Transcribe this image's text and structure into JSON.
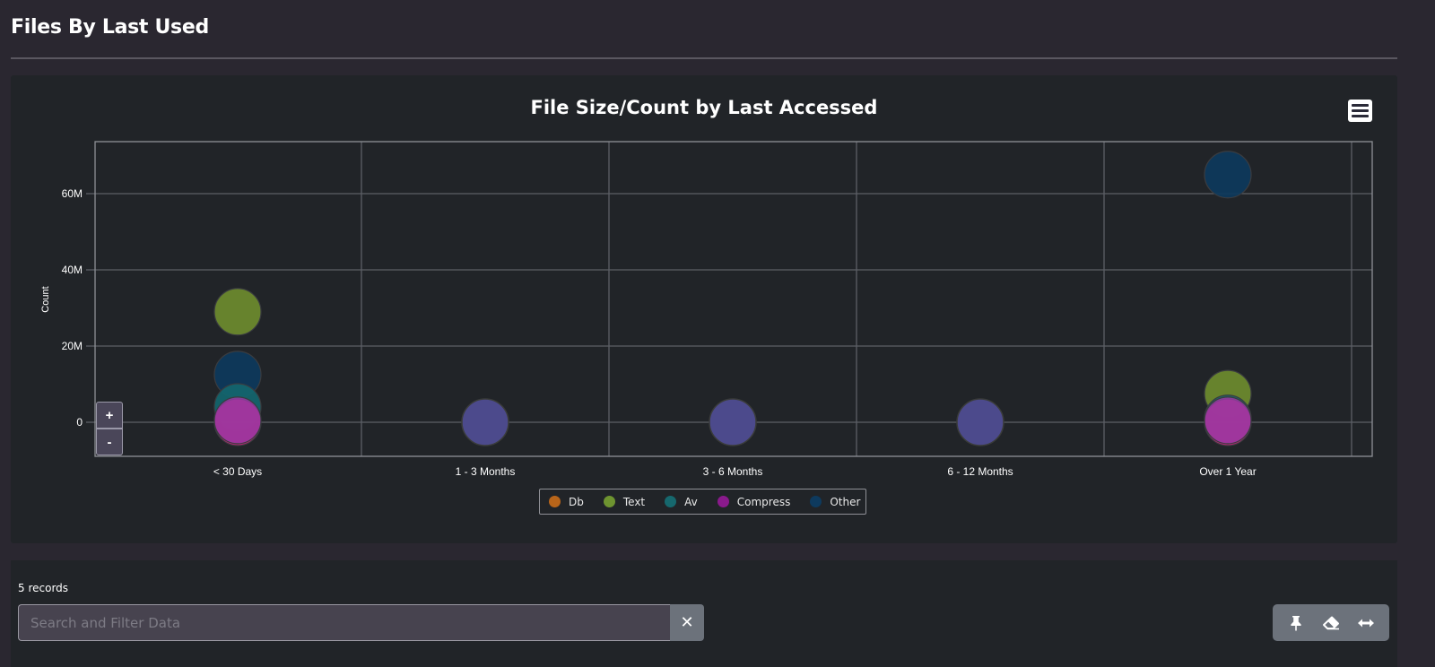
{
  "page": {
    "title": "Files By Last Used"
  },
  "chart_card": {
    "menu_icon": "hamburger-menu-icon",
    "zoom_in_label": "+",
    "zoom_out_label": "-"
  },
  "chart_data": {
    "type": "scatter",
    "subtype": "bubble",
    "title": "File Size/Count by Last Accessed",
    "xlabel": "",
    "ylabel": "Count",
    "categories": [
      "< 30 Days",
      "1 - 3 Months",
      "3 - 6 Months",
      "6 - 12 Months",
      "Over 1 Year"
    ],
    "y_ticks": [
      "0",
      "20M",
      "40M",
      "60M"
    ],
    "y_tick_values": [
      0,
      20000000,
      40000000,
      60000000
    ],
    "ylim": [
      -8500000,
      74000000
    ],
    "grid": true,
    "legend_position": "bottom-center",
    "series": [
      {
        "name": "Db",
        "color": "#c0287a",
        "legend_color": "#b8651a",
        "values": [
          0,
          0,
          0,
          0,
          0
        ]
      },
      {
        "name": "Text",
        "color": "#6e8c2e",
        "legend_color": "#6e9430",
        "values": [
          29000000,
          0,
          0,
          0,
          7500000
        ]
      },
      {
        "name": "Av",
        "color": "#14666e",
        "legend_color": "#16686e",
        "values": [
          4000000,
          0,
          0,
          0,
          1000000
        ]
      },
      {
        "name": "Compress",
        "color": "#9a3aa6",
        "legend_color": "#8a1a8c",
        "values": [
          500000,
          0,
          0,
          0,
          500000
        ]
      },
      {
        "name": "Other",
        "color": "#0d3a5c",
        "legend_color": "#0e3a5e",
        "values": [
          12500000,
          0,
          0,
          0,
          65000000
        ]
      }
    ],
    "overlap_color_zero_cluster": "#4c4a8c"
  },
  "legend": {
    "items": [
      {
        "label": "Db",
        "color": "#b8651a"
      },
      {
        "label": "Text",
        "color": "#6e9430"
      },
      {
        "label": "Av",
        "color": "#16686e"
      },
      {
        "label": "Compress",
        "color": "#8a1a8c"
      },
      {
        "label": "Other",
        "color": "#0e3a5e"
      }
    ]
  },
  "table": {
    "records_label": "5 records",
    "search_placeholder": "Search and Filter Data",
    "search_value": "",
    "clear_label": "✕",
    "tools": [
      {
        "name": "pin-icon"
      },
      {
        "name": "eraser-icon"
      },
      {
        "name": "expand-horizontal-icon"
      }
    ]
  }
}
